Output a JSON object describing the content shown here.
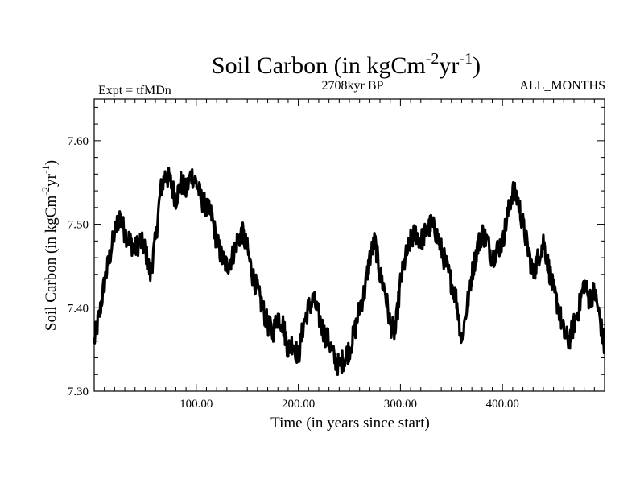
{
  "chart_data": {
    "type": "line",
    "title": "Soil Carbon (in kgCm",
    "title_sup1": "-2",
    "title_mid": "yr",
    "title_sup2": "-1",
    "title_end": ")",
    "left_note": "Expt = tfMDn",
    "center_note": "2708kyr BP",
    "right_note": "ALL_MONTHS",
    "xlabel": "Time (in years since start)",
    "ylabel": "Soil Carbon (in kgCm",
    "ylabel_sup1": "-2",
    "ylabel_mid": "yr",
    "ylabel_sup2": "-1",
    "ylabel_end": ")",
    "xlim": [
      0,
      500
    ],
    "ylim": [
      7.3,
      7.65
    ],
    "xticks": [
      100,
      200,
      300,
      400
    ],
    "xtick_labels": [
      "100.00",
      "200.00",
      "300.00",
      "400.00"
    ],
    "yticks": [
      7.3,
      7.4,
      7.5,
      7.6
    ],
    "ytick_labels": [
      "7.30",
      "7.40",
      "7.50",
      "7.60"
    ],
    "series": [
      {
        "name": "Soil Carbon",
        "x": [
          0,
          5,
          10,
          15,
          20,
          25,
          30,
          35,
          40,
          45,
          50,
          55,
          60,
          65,
          70,
          75,
          80,
          85,
          90,
          95,
          100,
          105,
          110,
          115,
          120,
          125,
          130,
          135,
          140,
          145,
          150,
          155,
          160,
          165,
          170,
          175,
          180,
          185,
          190,
          195,
          200,
          205,
          210,
          215,
          220,
          225,
          230,
          235,
          240,
          245,
          250,
          255,
          260,
          265,
          270,
          275,
          280,
          285,
          290,
          295,
          300,
          305,
          310,
          315,
          320,
          325,
          330,
          335,
          340,
          345,
          350,
          355,
          360,
          365,
          370,
          375,
          380,
          385,
          390,
          395,
          400,
          405,
          410,
          415,
          420,
          425,
          430,
          435,
          440,
          445,
          450,
          455,
          460,
          465,
          470,
          475,
          480,
          485,
          490,
          495,
          500
        ],
        "values": [
          7.36,
          7.39,
          7.43,
          7.46,
          7.49,
          7.51,
          7.49,
          7.48,
          7.47,
          7.48,
          7.47,
          7.44,
          7.48,
          7.54,
          7.56,
          7.55,
          7.53,
          7.55,
          7.54,
          7.56,
          7.55,
          7.53,
          7.52,
          7.51,
          7.48,
          7.46,
          7.45,
          7.46,
          7.48,
          7.49,
          7.47,
          7.44,
          7.42,
          7.4,
          7.38,
          7.37,
          7.39,
          7.38,
          7.35,
          7.36,
          7.34,
          7.38,
          7.4,
          7.41,
          7.39,
          7.37,
          7.36,
          7.34,
          7.33,
          7.34,
          7.35,
          7.37,
          7.4,
          7.42,
          7.46,
          7.48,
          7.44,
          7.42,
          7.38,
          7.37,
          7.43,
          7.46,
          7.48,
          7.49,
          7.48,
          7.49,
          7.5,
          7.49,
          7.47,
          7.45,
          7.43,
          7.41,
          7.36,
          7.4,
          7.44,
          7.47,
          7.49,
          7.48,
          7.46,
          7.47,
          7.48,
          7.51,
          7.54,
          7.53,
          7.5,
          7.47,
          7.44,
          7.46,
          7.48,
          7.45,
          7.42,
          7.4,
          7.37,
          7.36,
          7.38,
          7.4,
          7.43,
          7.41,
          7.42,
          7.39,
          7.35
        ]
      }
    ]
  }
}
